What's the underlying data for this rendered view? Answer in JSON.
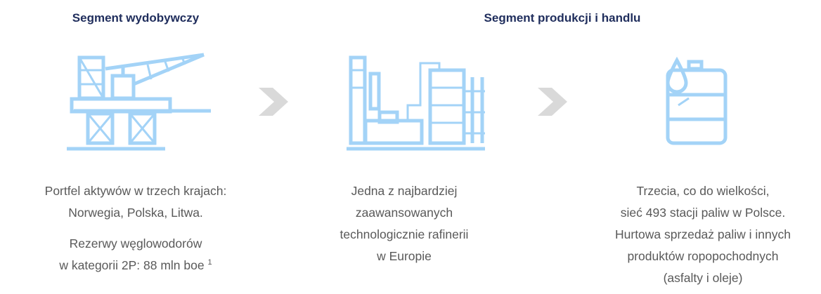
{
  "headings": [
    "Segment wydobywczy",
    "Segment produkcji i handlu"
  ],
  "columns": [
    {
      "paragraphs": [
        [
          "Portfel aktywów w trzech krajach:",
          "Norwegia, Polska, Litwa."
        ],
        [
          "Rezerwy węglowodorów",
          "w kategorii 2P: 88 mln boe"
        ]
      ],
      "footnote": "1"
    },
    {
      "paragraphs": [
        [
          "Jedna z najbardziej",
          "zaawansowanych",
          "technologicznie rafinerii",
          "w Europie"
        ]
      ]
    },
    {
      "paragraphs": [
        [
          "Trzecia, co do wielkości,",
          "sieć 493 stacji paliw w Polsce.",
          "Hurtowa sprzedaż paliw i innych",
          "produktów ropopochodnych",
          "(asfalty i oleje)"
        ]
      ]
    }
  ]
}
